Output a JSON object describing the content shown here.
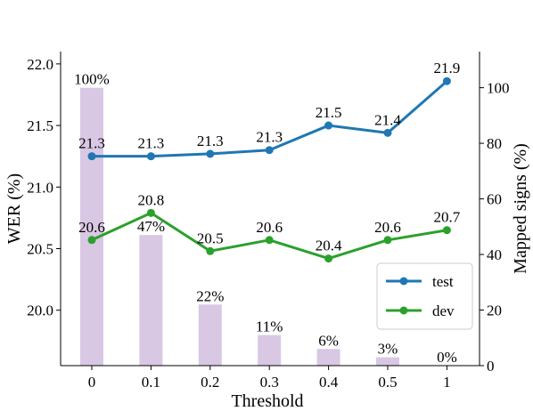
{
  "chart_data": {
    "type": "bar+line",
    "categories": [
      "0",
      "0.1",
      "0.2",
      "0.3",
      "0.4",
      "0.5",
      "1"
    ],
    "xlabel": "Threshold",
    "y_left": {
      "label": "WER (%)",
      "range": [
        19.55,
        22.1
      ],
      "ticks": [
        "20.0",
        "20.5",
        "21.0",
        "21.5",
        "22.0"
      ]
    },
    "y_right": {
      "label": "Mapped signs (%)",
      "range": [
        0,
        113
      ],
      "ticks": [
        "0",
        "20",
        "40",
        "60",
        "80",
        "100"
      ]
    },
    "bars": {
      "axis": "right",
      "color": "#d9c8e3",
      "values": [
        100,
        47,
        22,
        11,
        6,
        3,
        0
      ],
      "labels": [
        "100%",
        "47%",
        "22%",
        "11%",
        "6%",
        "3%",
        "0%"
      ]
    },
    "series": [
      {
        "name": "test",
        "axis": "left",
        "color": "#1f77b4",
        "values": [
          21.25,
          21.25,
          21.27,
          21.3,
          21.5,
          21.44,
          21.86
        ],
        "labels": [
          "21.3",
          "21.3",
          "21.3",
          "21.3",
          "21.5",
          "21.4",
          "21.9"
        ]
      },
      {
        "name": "dev",
        "axis": "left",
        "color": "#2ca02c",
        "values": [
          20.57,
          20.79,
          20.48,
          20.57,
          20.42,
          20.57,
          20.65
        ],
        "labels": [
          "20.6",
          "20.8",
          "20.5",
          "20.6",
          "20.4",
          "20.6",
          "20.7"
        ]
      }
    ],
    "legend": {
      "position": "lower-right",
      "entries": [
        "test",
        "dev"
      ]
    }
  }
}
